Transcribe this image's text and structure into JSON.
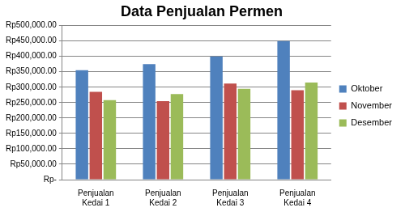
{
  "chart_data": {
    "type": "bar",
    "title": "Data Penjualan Permen",
    "categories": [
      "Penjualan Kedai 1",
      "Penjualan Kedai 2",
      "Penjualan Kedai 3",
      "Penjualan Kedai 4"
    ],
    "series": [
      {
        "name": "Oktober",
        "color": "#4F81BD",
        "values": [
          355000,
          375000,
          400000,
          450000
        ]
      },
      {
        "name": "November",
        "color": "#C0504D",
        "values": [
          285000,
          255000,
          312000,
          290000
        ]
      },
      {
        "name": "Desember",
        "color": "#9BBB59",
        "values": [
          258000,
          278000,
          295000,
          315000
        ]
      }
    ],
    "ylim": [
      0,
      500000
    ],
    "yticks": [
      {
        "value": 0,
        "label": "Rp-"
      },
      {
        "value": 50000,
        "label": "Rp50,000.00"
      },
      {
        "value": 100000,
        "label": "Rp100,000.00"
      },
      {
        "value": 150000,
        "label": "Rp150,000.00"
      },
      {
        "value": 200000,
        "label": "Rp200,000.00"
      },
      {
        "value": 250000,
        "label": "Rp250,000.00"
      },
      {
        "value": 300000,
        "label": "Rp300,000.00"
      },
      {
        "value": 350000,
        "label": "Rp350,000.00"
      },
      {
        "value": 400000,
        "label": "Rp400,000.00"
      },
      {
        "value": 450000,
        "label": "Rp450,000.00"
      },
      {
        "value": 500000,
        "label": "Rp500,000.00"
      }
    ],
    "grid": true,
    "legend": "right"
  }
}
